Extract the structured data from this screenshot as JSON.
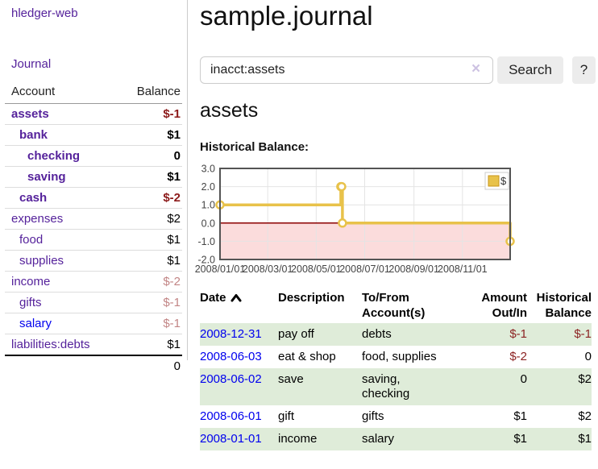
{
  "app": {
    "title": "hledger-web"
  },
  "sidebar": {
    "nav_journal": "Journal",
    "accounts_table": {
      "headers": [
        "Account",
        "Balance"
      ],
      "rows": [
        {
          "account": "assets",
          "depth": 1,
          "bold": true,
          "link_color": "purple",
          "balance": "$-1",
          "balance_style": "neg-strong"
        },
        {
          "account": "bank",
          "depth": 2,
          "bold": true,
          "link_color": "purple",
          "balance": "$1",
          "balance_style": ""
        },
        {
          "account": "checking",
          "depth": 3,
          "bold": true,
          "link_color": "purple",
          "balance": "0",
          "balance_style": ""
        },
        {
          "account": "saving",
          "depth": 3,
          "bold": true,
          "link_color": "purple",
          "balance": "$1",
          "balance_style": ""
        },
        {
          "account": "cash",
          "depth": 2,
          "bold": true,
          "link_color": "purple",
          "balance": "$-2",
          "balance_style": "neg-strong"
        },
        {
          "account": "expenses",
          "depth": 1,
          "bold": false,
          "link_color": "purple",
          "balance": "$2",
          "balance_style": ""
        },
        {
          "account": "food",
          "depth": 2,
          "bold": false,
          "link_color": "purple",
          "balance": "$1",
          "balance_style": ""
        },
        {
          "account": "supplies",
          "depth": 2,
          "bold": false,
          "link_color": "purple",
          "balance": "$1",
          "balance_style": ""
        },
        {
          "account": "income",
          "depth": 1,
          "bold": false,
          "link_color": "purple",
          "balance": "$-2",
          "balance_style": "neg-light"
        },
        {
          "account": "gifts",
          "depth": 2,
          "bold": false,
          "link_color": "purple",
          "balance": "$-1",
          "balance_style": "neg-light"
        },
        {
          "account": "salary",
          "depth": 2,
          "bold": false,
          "link_color": "blue",
          "balance": "$-1",
          "balance_style": "neg-light"
        },
        {
          "account": "liabilities:debts",
          "depth": 1,
          "bold": false,
          "link_color": "purple",
          "balance": "$1",
          "balance_style": ""
        }
      ],
      "total": "0"
    }
  },
  "main": {
    "title": "sample.journal",
    "search": {
      "value": "inacct:assets",
      "clear_icon": "×",
      "search_label": "Search",
      "help_label": "?"
    },
    "account_heading": "assets",
    "chart_heading": "Historical Balance:"
  },
  "chart_data": {
    "type": "line",
    "style": "step",
    "title": "Historical Balance",
    "series": [
      {
        "name": "$",
        "points": [
          [
            "2008-01-01",
            1
          ],
          [
            "2008-06-01",
            2
          ],
          [
            "2008-06-02",
            2
          ],
          [
            "2008-06-03",
            0
          ],
          [
            "2008-12-31",
            -1
          ]
        ]
      }
    ],
    "x_ticks": [
      "2008/01/01",
      "2008/03/01",
      "2008/05/01",
      "2008/07/01",
      "2008/09/01",
      "2008/11/01"
    ],
    "y_ticks": [
      "3.0",
      "2.0",
      "1.0",
      "0.0",
      "-1.0",
      "-2.0"
    ],
    "xlim": [
      "2008-01-01",
      "2008-12-31"
    ],
    "ylim": [
      -2,
      3
    ],
    "grid": true,
    "legend": {
      "label": "$",
      "position": "top-right"
    },
    "colors": {
      "line": "#e8c24a",
      "point_fill": "#ffffff",
      "negative_fill": "#fbdcdc",
      "zero_line": "#8b0000",
      "grid": "#e4e4e4",
      "border": "#545454"
    }
  },
  "register_table": {
    "headers": [
      {
        "line1": "Date",
        "line2": "",
        "sort": "ascending"
      },
      {
        "line1": "Description",
        "line2": ""
      },
      {
        "line1": "To/From",
        "line2": "Account(s)"
      },
      {
        "line1": "Amount",
        "line2": "Out/In"
      },
      {
        "line1": "Historical",
        "line2": "Balance"
      }
    ],
    "rows": [
      {
        "date": "2008-12-31",
        "description": "pay off",
        "accounts": "debts",
        "amount": "$-1",
        "balance": "$-1"
      },
      {
        "date": "2008-06-03",
        "description": "eat & shop",
        "accounts": "food, supplies",
        "amount": "$-2",
        "balance": "0"
      },
      {
        "date": "2008-06-02",
        "description": "save",
        "accounts": "saving, checking",
        "amount": "0",
        "balance": "$2"
      },
      {
        "date": "2008-06-01",
        "description": "gift",
        "accounts": "gifts",
        "amount": "$1",
        "balance": "$2"
      },
      {
        "date": "2008-01-01",
        "description": "income",
        "accounts": "salary",
        "amount": "$1",
        "balance": "$1"
      }
    ]
  }
}
